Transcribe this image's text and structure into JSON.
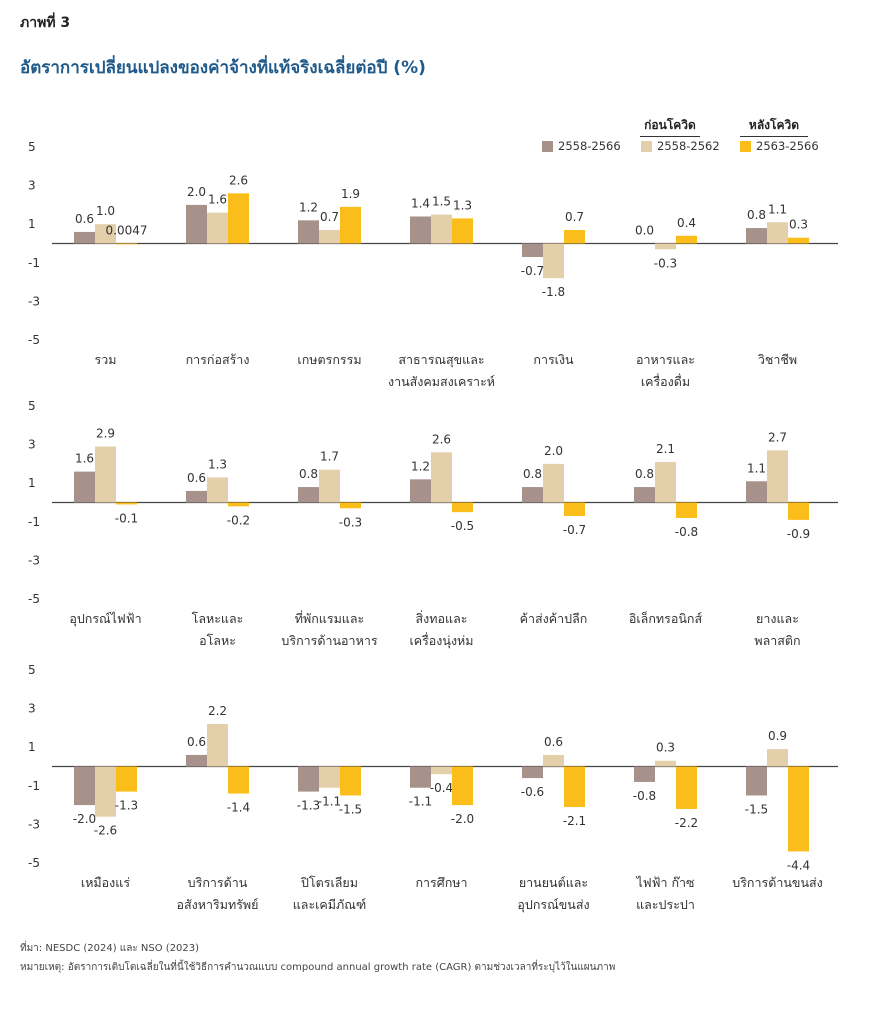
{
  "figure_label": "ภาพที่ 3",
  "title": "อัตราการเปลี่ยนแปลงของค่าจ้างที่แท้จริงเฉลี่ยต่อปี (%)",
  "legend": {
    "group_pre": "ก่อนโควิด",
    "group_post": "หลังโควิด",
    "items": [
      {
        "label": "2558-2566",
        "color": "#a6918b"
      },
      {
        "label": "2558-2562",
        "color": "#e3cfa9"
      },
      {
        "label": "2563-2566",
        "color": "#fbbd19"
      }
    ]
  },
  "source": "ที่มา: NESDC (2024) และ NSO (2023)",
  "note": "หมายเหตุ: อัตราการเติบโตเฉลี่ยในที่นี้ใช้วิธีการคำนวณแบบ compound annual growth rate (CAGR) ตามช่วงเวลาที่ระบุไว้ในแผนภาพ",
  "chart_data": {
    "type": "bar",
    "ylim": [
      -5,
      5
    ],
    "yticks": [
      "5",
      "3",
      "1",
      "-1",
      "-3",
      "-5"
    ],
    "series_names": [
      "2558-2566",
      "2558-2562",
      "2563-2566"
    ],
    "series_colors": [
      "#a6918b",
      "#e3cfa9",
      "#fbbd19"
    ],
    "panels": [
      {
        "categories": [
          {
            "label": [
              "รวม"
            ],
            "values": [
              0.6,
              1.0,
              0.0047
            ],
            "labels": [
              "0.6",
              "1.0",
              "0.0047"
            ]
          },
          {
            "label": [
              "การก่อสร้าง"
            ],
            "values": [
              2.0,
              1.6,
              2.6
            ],
            "labels": [
              "2.0",
              "1.6",
              "2.6"
            ]
          },
          {
            "label": [
              "เกษตรกรรม"
            ],
            "values": [
              1.2,
              0.7,
              1.9
            ],
            "labels": [
              "1.2",
              "0.7",
              "1.9"
            ]
          },
          {
            "label": [
              "สาธารณสุขและ",
              "งานสังคมสงเคราะห์"
            ],
            "values": [
              1.4,
              1.5,
              1.3
            ],
            "labels": [
              "1.4",
              "1.5",
              "1.3"
            ]
          },
          {
            "label": [
              "การเงิน"
            ],
            "values": [
              -0.7,
              -1.8,
              0.7
            ],
            "labels": [
              "-0.7",
              "-1.8",
              "0.7"
            ]
          },
          {
            "label": [
              "อาหารและ",
              "เครื่องดื่ม"
            ],
            "values": [
              0.0,
              -0.3,
              0.4
            ],
            "labels": [
              "0.0",
              "-0.3",
              "0.4"
            ]
          },
          {
            "label": [
              "วิชาชีพ"
            ],
            "values": [
              0.8,
              1.1,
              0.3
            ],
            "labels": [
              "0.8",
              "1.1",
              "0.3"
            ]
          }
        ]
      },
      {
        "categories": [
          {
            "label": [
              "อุปกรณ์ไฟฟ้า"
            ],
            "values": [
              1.6,
              2.9,
              -0.1
            ],
            "labels": [
              "1.6",
              "2.9",
              "-0.1"
            ]
          },
          {
            "label": [
              "โลหะและ",
              "อโลหะ"
            ],
            "values": [
              0.6,
              1.3,
              -0.2
            ],
            "labels": [
              "0.6",
              "1.3",
              "-0.2"
            ]
          },
          {
            "label": [
              "ที่พักแรมและ",
              "บริการด้านอาหาร"
            ],
            "values": [
              0.8,
              1.7,
              -0.3
            ],
            "labels": [
              "0.8",
              "1.7",
              "-0.3"
            ]
          },
          {
            "label": [
              "สิ่งทอและ",
              "เครื่องนุ่งห่ม"
            ],
            "values": [
              1.2,
              2.6,
              -0.5
            ],
            "labels": [
              "1.2",
              "2.6",
              "-0.5"
            ]
          },
          {
            "label": [
              "ค้าส่งค้าปลีก"
            ],
            "values": [
              0.8,
              2.0,
              -0.7
            ],
            "labels": [
              "0.8",
              "2.0",
              "-0.7"
            ]
          },
          {
            "label": [
              "อิเล็กทรอนิกส์"
            ],
            "values": [
              0.8,
              2.1,
              -0.8
            ],
            "labels": [
              "0.8",
              "2.1",
              "-0.8"
            ]
          },
          {
            "label": [
              "ยางและ",
              "พลาสติก"
            ],
            "values": [
              1.1,
              2.7,
              -0.9
            ],
            "labels": [
              "1.1",
              "2.7",
              "-0.9"
            ]
          }
        ]
      },
      {
        "categories": [
          {
            "label": [
              "เหมืองแร่"
            ],
            "values": [
              -2.0,
              -2.6,
              -1.3
            ],
            "labels": [
              "-2.0",
              "-2.6",
              "-1.3"
            ]
          },
          {
            "label": [
              "บริการด้าน",
              "อสังหาริมทรัพย์"
            ],
            "values": [
              0.6,
              2.2,
              -1.4
            ],
            "labels": [
              "0.6",
              "2.2",
              "-1.4"
            ]
          },
          {
            "label": [
              "ปิโตรเลียม",
              "และเคมีภัณฑ์"
            ],
            "values": [
              -1.3,
              -1.1,
              -1.5
            ],
            "labels": [
              "-1.3",
              "-1.1",
              "-1.5"
            ]
          },
          {
            "label": [
              "การศึกษา"
            ],
            "values": [
              -1.1,
              -0.4,
              -2.0
            ],
            "labels": [
              "-1.1",
              "-0.4",
              "-2.0"
            ]
          },
          {
            "label": [
              "ยานยนต์และ",
              "อุปกรณ์ขนส่ง"
            ],
            "values": [
              -0.6,
              0.6,
              -2.1
            ],
            "labels": [
              "-0.6",
              "0.6",
              "-2.1"
            ]
          },
          {
            "label": [
              "ไฟฟ้า ก๊าซ",
              "และประปา"
            ],
            "values": [
              -0.8,
              0.3,
              -2.2
            ],
            "labels": [
              "-0.8",
              "0.3",
              "-2.2"
            ]
          },
          {
            "label": [
              "บริการด้านขนส่ง"
            ],
            "values": [
              -1.5,
              0.9,
              -4.4
            ],
            "labels": [
              "-1.5",
              "0.9",
              "-4.4"
            ]
          }
        ]
      }
    ]
  }
}
